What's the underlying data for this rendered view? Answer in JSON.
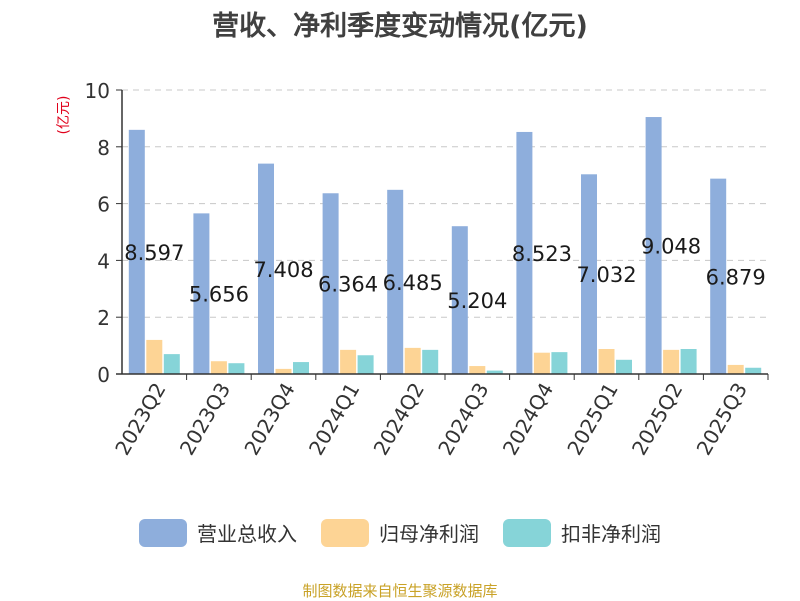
{
  "chart_data": {
    "type": "bar",
    "title": "营收、净利季度变动情况(亿元)",
    "ylabel": "(亿元)",
    "xlabel": "",
    "ylim": [
      0,
      10
    ],
    "yticks": [
      0,
      2,
      4,
      6,
      8,
      10
    ],
    "grid": true,
    "legend_position": "bottom",
    "categories": [
      "2023Q2",
      "2023Q3",
      "2023Q4",
      "2024Q1",
      "2024Q2",
      "2024Q3",
      "2024Q4",
      "2025Q1",
      "2025Q2",
      "2025Q3"
    ],
    "series": [
      {
        "name": "营业总收入",
        "color": "#8eaedc",
        "values": [
          8.597,
          5.656,
          7.408,
          6.364,
          6.485,
          5.204,
          8.523,
          7.032,
          9.048,
          6.879
        ],
        "data_labels": [
          "8.597",
          "5.656",
          "7.408",
          "6.364",
          "6.485",
          "5.204",
          "8.523",
          "7.032",
          "9.048",
          "6.879"
        ]
      },
      {
        "name": "归母净利润",
        "color": "#fdd495",
        "values": [
          1.2,
          0.45,
          0.18,
          0.85,
          0.92,
          0.28,
          0.75,
          0.88,
          0.85,
          0.32
        ]
      },
      {
        "name": "扣非净利润",
        "color": "#86d4d8",
        "values": [
          0.7,
          0.38,
          0.42,
          0.66,
          0.85,
          0.12,
          0.77,
          0.5,
          0.88,
          0.22
        ]
      }
    ]
  },
  "source_note": "制图数据来自恒生聚源数据库"
}
